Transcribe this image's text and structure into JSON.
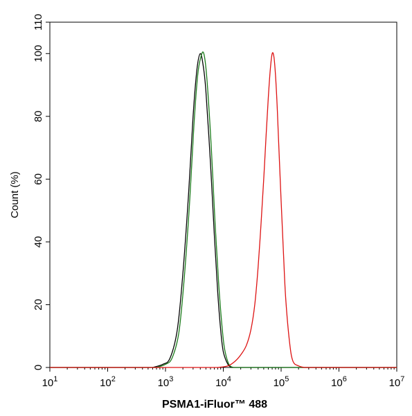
{
  "chart_data": {
    "type": "line",
    "title": "",
    "xlabel": "PSMA1-iFluor™ 488",
    "ylabel": "Count  (%)",
    "x_scale": "log",
    "xlim": [
      10,
      10000000
    ],
    "ylim": [
      0,
      110
    ],
    "x_ticks": [
      {
        "base": "10",
        "exp": "1"
      },
      {
        "base": "10",
        "exp": "2"
      },
      {
        "base": "10",
        "exp": "3"
      },
      {
        "base": "10",
        "exp": "4"
      },
      {
        "base": "10",
        "exp": "5"
      },
      {
        "base": "10",
        "exp": "6"
      },
      {
        "base": "10",
        "exp": "7"
      }
    ],
    "y_ticks": [
      0,
      20,
      40,
      60,
      80,
      100,
      110
    ],
    "grid": false,
    "legend": "none",
    "series": [
      {
        "color": "#000000",
        "x": [
          600,
          900,
          1200,
          1600,
          2000,
          2500,
          3000,
          3500,
          4000,
          4500,
          5000,
          6000,
          7000,
          8000,
          9000,
          10000,
          12000,
          14000
        ],
        "y": [
          0,
          1,
          3,
          12,
          30,
          55,
          80,
          95,
          100,
          96,
          88,
          65,
          42,
          24,
          12,
          5,
          1,
          0
        ]
      },
      {
        "color": "#1a7a1a",
        "x": [
          700,
          1000,
          1300,
          1700,
          2100,
          2600,
          3100,
          3600,
          4100,
          4600,
          5200,
          6200,
          7200,
          8300,
          9400,
          10500,
          12500,
          15000
        ],
        "y": [
          0,
          1,
          3,
          11,
          28,
          52,
          77,
          93,
          99,
          100,
          92,
          70,
          46,
          27,
          14,
          6,
          1,
          0
        ]
      },
      {
        "color": "#dd1111",
        "x": [
          8000,
          12000,
          16000,
          20000,
          25000,
          30000,
          35000,
          40000,
          45000,
          50000,
          55000,
          60000,
          65000,
          70000,
          75000,
          80000,
          85000,
          90000,
          100000,
          110000,
          120000,
          140000,
          160000,
          200000,
          250000
        ],
        "y": [
          0,
          0.5,
          2,
          4,
          7,
          12,
          20,
          32,
          46,
          60,
          74,
          86,
          95,
          100,
          99,
          93,
          84,
          73,
          53,
          36,
          22,
          8,
          2,
          0.5,
          0
        ]
      }
    ]
  }
}
